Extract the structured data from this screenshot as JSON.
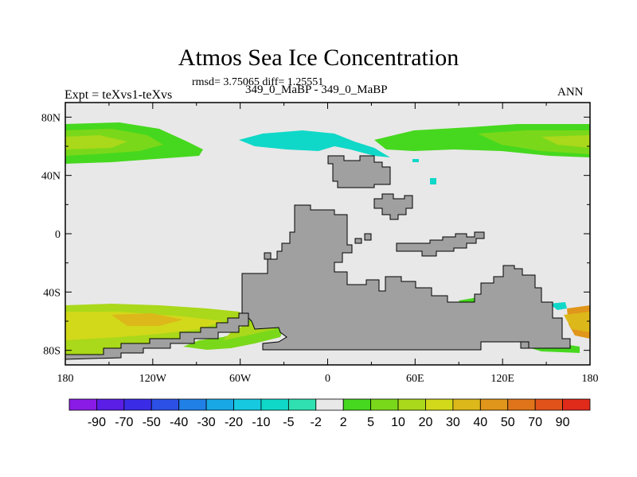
{
  "chart_data": {
    "type": "heatmap",
    "title": "Atmos Sea Ice Concentration",
    "stats": "rmsd= 3.75065 diff= 1.25551",
    "experiment": "Expt = teXvs1-teXvs",
    "cases": "349_0_MaBP - 349_0_MaBP",
    "season": "ANN",
    "x_ticks": [
      "180",
      "120W",
      "60W",
      "0",
      "60E",
      "120E",
      "180"
    ],
    "y_ticks": [
      "80N",
      "40N",
      "0",
      "40S",
      "80S"
    ],
    "xlim": [
      -180,
      180
    ],
    "ylim": [
      -90,
      90
    ],
    "colorbar": {
      "labels": [
        "-90",
        "-70",
        "-50",
        "-40",
        "-30",
        "-20",
        "-10",
        "-5",
        "-2",
        "2",
        "5",
        "10",
        "20",
        "30",
        "40",
        "50",
        "70",
        "90"
      ],
      "colors": [
        "#8a1ae6",
        "#5a1ee6",
        "#3a2ce6",
        "#2c50e6",
        "#2080e6",
        "#18a8e6",
        "#16c8e0",
        "#10d8c8",
        "#30e0b0",
        "#e8e8e8",
        "#46d81e",
        "#7ad81a",
        "#aad81a",
        "#d2d81a",
        "#dcb81a",
        "#e0961a",
        "#e0741a",
        "#e0521a",
        "#e02a1a"
      ]
    }
  }
}
